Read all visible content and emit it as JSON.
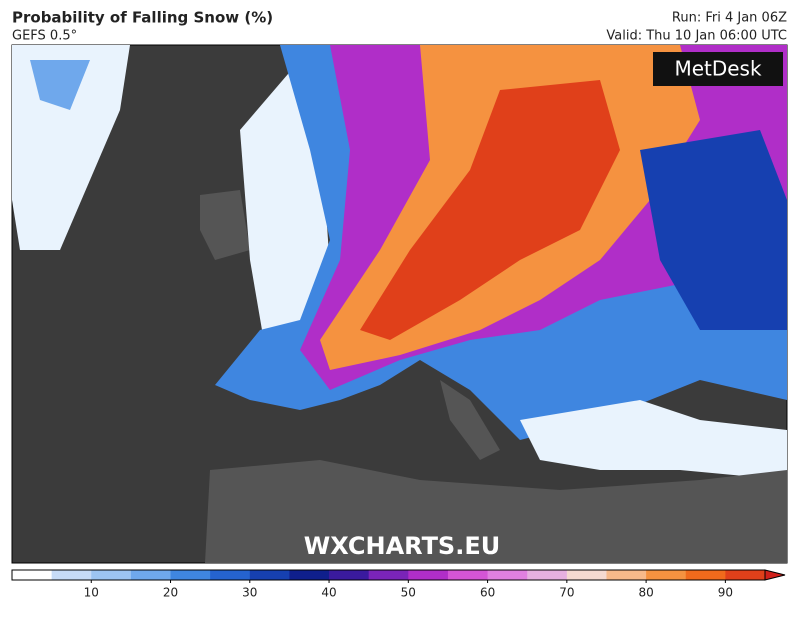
{
  "header": {
    "title": "Probability of Falling Snow (%)",
    "subtitle": "GEFS 0.5°",
    "run": "Run: Fri 4 Jan 06Z",
    "valid": "Valid: Thu 10 Jan 06:00 UTC"
  },
  "map": {
    "logo": "MetDesk",
    "watermark": "WXCHARTS.EU"
  },
  "legend": {
    "range": [
      0,
      95
    ],
    "ticks": [
      10,
      20,
      30,
      40,
      50,
      60,
      70,
      80,
      90
    ],
    "colors": [
      "#ffffff",
      "#c6dbf7",
      "#9cc4f2",
      "#6fa8ec",
      "#3f86e0",
      "#2563cf",
      "#1640b0",
      "#0f1f8c",
      "#3a1a9e",
      "#7a24b8",
      "#b02ec8",
      "#d455d6",
      "#e080e0",
      "#e6b0e0",
      "#f5d9d0",
      "#f7b98a",
      "#f59240",
      "#f06a1c",
      "#e0401a"
    ],
    "arrow_color": "#d0201a"
  }
}
